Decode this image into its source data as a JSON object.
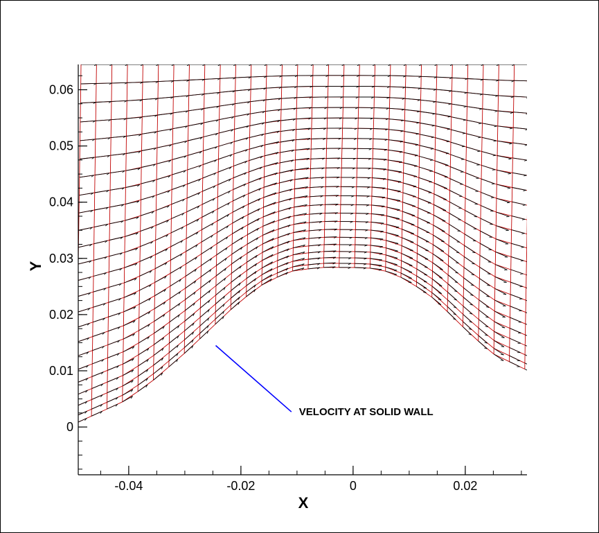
{
  "chart_data": {
    "type": "vector-field",
    "title": "",
    "xlabel": "X",
    "ylabel": "Y",
    "xlim": [
      -0.049,
      0.031
    ],
    "ylim": [
      -0.0085,
      0.0645
    ],
    "x_ticks": [
      -0.04,
      -0.02,
      0,
      0.02
    ],
    "x_tick_labels": [
      "-0.04",
      "-0.02",
      "0",
      "0.02"
    ],
    "y_ticks": [
      0,
      0.01,
      0.02,
      0.03,
      0.04,
      0.05,
      0.06
    ],
    "y_tick_labels": [
      "0",
      "0.01",
      "0.02",
      "0.03",
      "0.04",
      "0.05",
      "0.06"
    ],
    "grid": false,
    "wall": {
      "description": "lower solid wall of the bump",
      "points": [
        [
          -0.049,
          0.0007
        ],
        [
          -0.045,
          0.0025
        ],
        [
          -0.04,
          0.0048
        ],
        [
          -0.035,
          0.0085
        ],
        [
          -0.03,
          0.0128
        ],
        [
          -0.025,
          0.0175
        ],
        [
          -0.02,
          0.0222
        ],
        [
          -0.015,
          0.0259
        ],
        [
          -0.01,
          0.0279
        ],
        [
          -0.005,
          0.0284
        ],
        [
          0.0,
          0.0284
        ],
        [
          0.005,
          0.0282
        ],
        [
          0.01,
          0.0262
        ],
        [
          0.015,
          0.0227
        ],
        [
          0.02,
          0.0178
        ],
        [
          0.025,
          0.0132
        ],
        [
          0.031,
          0.0103
        ]
      ]
    },
    "mesh": {
      "i_lines": 30,
      "j_lines": 24,
      "top_y": 0.0645,
      "color": "#c00000"
    },
    "vectors": {
      "color": "#000000"
    },
    "annotation": {
      "text": "VELOCITY AT SOLID WALL",
      "pointer_color": "#0000ff",
      "target": [
        -0.0245,
        0.0145
      ],
      "text_anchor_point": [
        -0.011,
        0.0027
      ]
    }
  }
}
